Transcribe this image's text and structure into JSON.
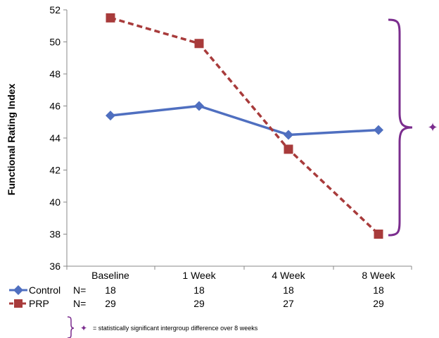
{
  "chart_data": {
    "type": "line",
    "categories": [
      "Baseline",
      "1 Week",
      "4 Week",
      "8 Week"
    ],
    "ylabel": "Functional Rating Index",
    "ylim": [
      36,
      52
    ],
    "yticks": [
      36,
      38,
      40,
      42,
      44,
      46,
      48,
      50,
      52
    ],
    "grid": false,
    "series": [
      {
        "name": "Control",
        "values": [
          45.4,
          46.0,
          44.2,
          44.5
        ],
        "color": "#4F6FC0",
        "marker": "diamond",
        "line_style": "solid"
      },
      {
        "name": "PRP",
        "values": [
          51.5,
          49.9,
          43.3,
          38.0
        ],
        "color": "#A83B3B",
        "marker": "square",
        "line_style": "dashed"
      }
    ],
    "annotation": {
      "symbol": "✦",
      "bracket_color": "#7B2D8E",
      "spans_category": "8 Week"
    }
  },
  "n_table": {
    "label": "N=",
    "rows": [
      {
        "series": "Control",
        "values": [
          "18",
          "18",
          "18",
          "18"
        ]
      },
      {
        "series": "PRP",
        "values": [
          "29",
          "29",
          "27",
          "29"
        ]
      }
    ]
  },
  "footnote": {
    "symbol": "✦",
    "text": "= statistically significant intergroup difference over 8 weeks"
  }
}
